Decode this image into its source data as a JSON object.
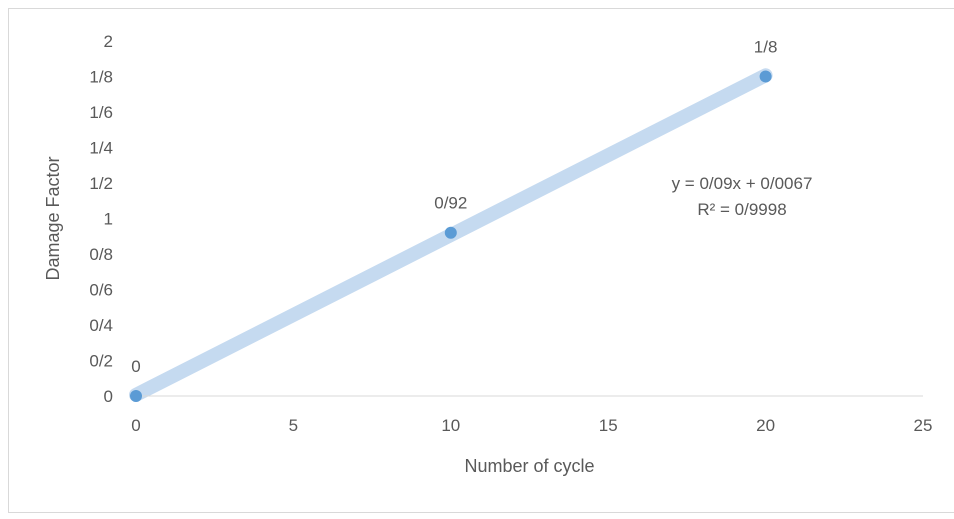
{
  "chart_data": {
    "type": "scatter",
    "title": "",
    "xlabel": "Number of cycle",
    "ylabel": "Damage Factor",
    "xlim": [
      0,
      25
    ],
    "ylim": [
      0,
      2
    ],
    "x_ticks": [
      0,
      5,
      10,
      15,
      20,
      25
    ],
    "x_tick_labels": [
      "0",
      "5",
      "10",
      "15",
      "20",
      "25"
    ],
    "y_ticks": [
      0,
      0.2,
      0.4,
      0.6,
      0.8,
      1.0,
      1.2,
      1.4,
      1.6,
      1.8,
      2.0
    ],
    "y_tick_labels": [
      "0",
      "0/2",
      "0/4",
      "0/6",
      "0/8",
      "1",
      "1/2",
      "1/4",
      "1/6",
      "1/8",
      "2"
    ],
    "grid": false,
    "series": [
      {
        "x": [
          0,
          10,
          20
        ],
        "y": [
          0,
          0.92,
          1.8
        ],
        "data_labels": [
          "0",
          "0/92",
          "1/8"
        ],
        "color": "#5b9bd5"
      }
    ],
    "trendline": {
      "type": "linear",
      "slope": 0.09,
      "intercept": 0.0067,
      "equation": "y = 0/09x + 0/0067",
      "r_squared": "R² = 0/9998",
      "color": "#c5daf0"
    },
    "colors": {
      "axis": "#d9d9d9",
      "text": "#595959"
    }
  }
}
